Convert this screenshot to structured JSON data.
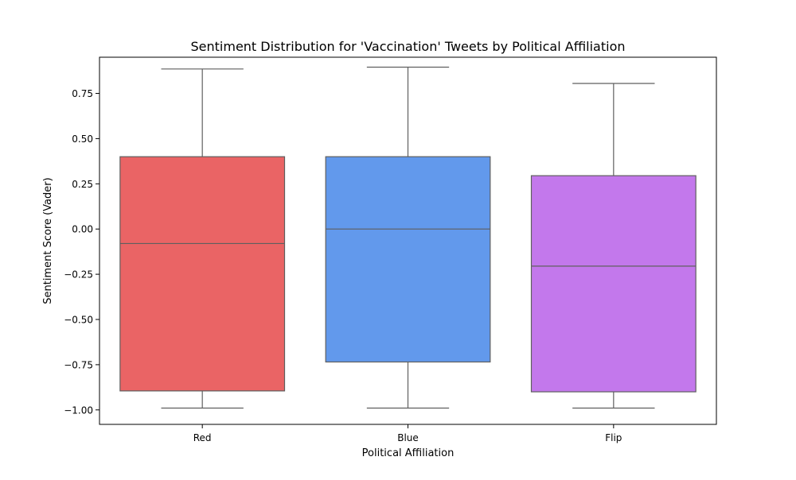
{
  "chart_data": {
    "type": "box",
    "title": "Sentiment Distribution for 'Vaccination' Tweets by Political Affiliation",
    "xlabel": "Political Affiliation",
    "ylabel": "Sentiment Score (Vader)",
    "ylim": [
      -1.08,
      0.95
    ],
    "yticks": [
      -1.0,
      -0.75,
      -0.5,
      -0.25,
      0.0,
      0.25,
      0.5,
      0.75
    ],
    "ytick_labels": [
      "−1.00",
      "−0.75",
      "−0.50",
      "−0.25",
      "0.00",
      "0.25",
      "0.50",
      "0.75"
    ],
    "categories": [
      "Red",
      "Blue",
      "Flip"
    ],
    "colors": [
      "#ea6465",
      "#6299ec",
      "#c378ec"
    ],
    "edge_color": "#5f5f5f",
    "grid": false,
    "legend": "none",
    "boxes": [
      {
        "name": "Red",
        "whisker_low": -0.99,
        "q1": -0.895,
        "median": -0.08,
        "q3": 0.4,
        "whisker_high": 0.885
      },
      {
        "name": "Blue",
        "whisker_low": -0.99,
        "q1": -0.735,
        "median": 0.0,
        "q3": 0.4,
        "whisker_high": 0.895
      },
      {
        "name": "Flip",
        "whisker_low": -0.99,
        "q1": -0.9,
        "median": -0.205,
        "q3": 0.295,
        "whisker_high": 0.805
      }
    ]
  }
}
